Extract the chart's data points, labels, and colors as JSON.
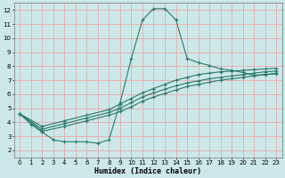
{
  "title": "",
  "xlabel": "Humidex (Indice chaleur)",
  "xlim": [
    -0.5,
    23.5
  ],
  "ylim": [
    1.5,
    12.5
  ],
  "xticks": [
    0,
    1,
    2,
    3,
    4,
    5,
    6,
    7,
    8,
    9,
    10,
    11,
    12,
    13,
    14,
    15,
    16,
    17,
    18,
    19,
    20,
    21,
    22,
    23
  ],
  "yticks": [
    2,
    3,
    4,
    5,
    6,
    7,
    8,
    9,
    10,
    11,
    12
  ],
  "bg_color": "#cce8e8",
  "grid_color": "#e8aaaa",
  "line_color": "#2a7a6a",
  "line1_x": [
    0,
    1,
    2,
    3,
    4,
    5,
    6,
    7,
    8,
    9,
    10,
    11,
    12,
    13,
    14,
    15,
    16,
    17,
    18,
    19,
    20,
    21,
    22,
    23
  ],
  "line1_y": [
    4.6,
    3.85,
    3.3,
    2.75,
    2.6,
    2.6,
    2.6,
    2.5,
    2.75,
    5.4,
    8.55,
    11.3,
    12.1,
    12.1,
    11.3,
    8.55,
    8.25,
    8.05,
    7.8,
    7.7,
    7.55,
    7.35,
    7.4,
    7.5
  ],
  "line2_x": [
    0,
    2,
    4,
    6,
    8,
    9,
    10,
    11,
    12,
    13,
    14,
    15,
    16,
    17,
    18,
    19,
    20,
    21,
    22,
    23
  ],
  "line2_y": [
    4.6,
    3.7,
    4.1,
    4.5,
    4.9,
    5.3,
    5.7,
    6.1,
    6.4,
    6.7,
    7.0,
    7.2,
    7.4,
    7.5,
    7.6,
    7.65,
    7.7,
    7.75,
    7.8,
    7.85
  ],
  "line3_x": [
    0,
    2,
    4,
    6,
    8,
    9,
    10,
    11,
    12,
    13,
    14,
    15,
    16,
    17,
    18,
    19,
    20,
    21,
    22,
    23
  ],
  "line3_y": [
    4.6,
    3.5,
    3.9,
    4.3,
    4.7,
    5.0,
    5.4,
    5.8,
    6.1,
    6.35,
    6.6,
    6.8,
    6.95,
    7.1,
    7.2,
    7.3,
    7.4,
    7.5,
    7.6,
    7.65
  ],
  "line4_x": [
    0,
    2,
    4,
    6,
    8,
    9,
    10,
    11,
    12,
    13,
    14,
    15,
    16,
    17,
    18,
    19,
    20,
    21,
    22,
    23
  ],
  "line4_y": [
    4.6,
    3.35,
    3.7,
    4.1,
    4.5,
    4.75,
    5.1,
    5.5,
    5.8,
    6.05,
    6.3,
    6.55,
    6.7,
    6.85,
    7.0,
    7.1,
    7.2,
    7.3,
    7.4,
    7.45
  ]
}
